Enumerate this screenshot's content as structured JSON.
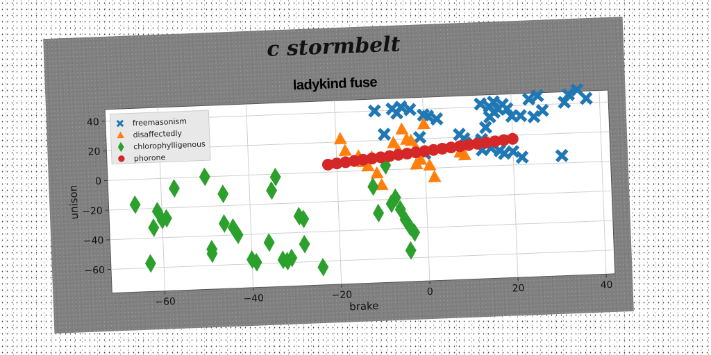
{
  "suptitle": "c stormbelt",
  "chart_data": {
    "type": "scatter",
    "title": "ladykind fuse",
    "xlabel": "brake",
    "ylabel": "unison",
    "xlim": [
      -72,
      42
    ],
    "ylim": [
      -76,
      48
    ],
    "xticks": [
      -60,
      -40,
      -20,
      0,
      20,
      40
    ],
    "yticks": [
      -60,
      -40,
      -20,
      0,
      20,
      40
    ],
    "grid": true,
    "legend_position": "top-left",
    "colors": {
      "freemasonism": "#1f77b4",
      "disaffectedly": "#ff7f0e",
      "chlorophylligenous": "#2ca02c",
      "phorone": "#d62728"
    },
    "series": [
      {
        "name": "freemasonism",
        "marker": "x",
        "points": [
          [
            -11,
            40
          ],
          [
            -7,
            41
          ],
          [
            -6,
            38
          ],
          [
            -5,
            42
          ],
          [
            -3,
            40
          ],
          [
            0,
            36
          ],
          [
            1,
            35
          ],
          [
            3,
            33
          ],
          [
            -9,
            24
          ],
          [
            -1,
            21
          ],
          [
            8,
            22
          ],
          [
            9,
            19
          ],
          [
            11,
            16
          ],
          [
            13,
            18
          ],
          [
            14,
            26
          ],
          [
            15,
            33
          ],
          [
            16,
            36
          ],
          [
            17,
            38
          ],
          [
            15,
            40
          ],
          [
            13,
            42
          ],
          [
            16,
            43
          ],
          [
            18,
            41
          ],
          [
            19,
            38
          ],
          [
            20,
            33
          ],
          [
            22,
            33
          ],
          [
            25,
            32
          ],
          [
            27,
            36
          ],
          [
            24,
            44
          ],
          [
            26,
            46
          ],
          [
            32,
            41
          ],
          [
            33,
            46
          ],
          [
            35,
            49
          ],
          [
            37,
            43
          ],
          [
            13,
            11
          ],
          [
            15,
            12
          ],
          [
            17,
            10
          ],
          [
            18,
            8
          ],
          [
            20,
            9
          ],
          [
            22,
            5
          ],
          [
            31,
            5
          ],
          [
            0,
            10
          ]
        ]
      },
      {
        "name": "disaffectedly",
        "marker": "^",
        "points": [
          [
            -19,
            22
          ],
          [
            -18,
            14
          ],
          [
            -15,
            10
          ],
          [
            -14,
            6
          ],
          [
            -13,
            3
          ],
          [
            -12,
            9
          ],
          [
            -11,
            -2
          ],
          [
            -10,
            -10
          ],
          [
            -7,
            18
          ],
          [
            -6,
            13
          ],
          [
            -5,
            27
          ],
          [
            -4,
            20
          ],
          [
            -3,
            19
          ],
          [
            -2,
            14
          ],
          [
            -2,
            3
          ],
          [
            -1,
            6
          ],
          [
            0,
            30
          ],
          [
            1,
            2
          ],
          [
            2,
            -6
          ],
          [
            8,
            10
          ],
          [
            9,
            8
          ]
        ]
      },
      {
        "name": "chlorophylligenous",
        "marker": "d",
        "points": [
          [
            -66,
            -17
          ],
          [
            -62,
            -33
          ],
          [
            -61,
            -22
          ],
          [
            -60,
            -28
          ],
          [
            -59,
            -27
          ],
          [
            -63,
            -57
          ],
          [
            -57,
            -7
          ],
          [
            -50,
            0
          ],
          [
            -49,
            -52
          ],
          [
            -49,
            -49
          ],
          [
            -46,
            -12
          ],
          [
            -46,
            -32
          ],
          [
            -44,
            -35
          ],
          [
            -43,
            -40
          ],
          [
            -40,
            -57
          ],
          [
            -39,
            -59
          ],
          [
            -36,
            -46
          ],
          [
            -35,
            -11
          ],
          [
            -34,
            -2
          ],
          [
            -33,
            -58
          ],
          [
            -32,
            -59
          ],
          [
            -31,
            -57
          ],
          [
            -29,
            -29
          ],
          [
            -28,
            -31
          ],
          [
            -28,
            -48
          ],
          [
            -24,
            -64
          ],
          [
            -12,
            -11
          ],
          [
            -11,
            -29
          ],
          [
            -8,
            -23
          ],
          [
            -7,
            -19
          ],
          [
            -6,
            -27
          ],
          [
            -5,
            -34
          ],
          [
            -4,
            -39
          ],
          [
            -4,
            -55
          ],
          [
            -3,
            -43
          ],
          [
            -9,
            3
          ]
        ]
      },
      {
        "name": "phorone",
        "marker": "o",
        "points": [
          [
            -22,
            5
          ],
          [
            -20,
            5.6
          ],
          [
            -18,
            6.2
          ],
          [
            -16,
            6.8
          ],
          [
            -14,
            7.4
          ],
          [
            -12,
            8.0
          ],
          [
            -10,
            8.6
          ],
          [
            -8,
            9.2
          ],
          [
            -6,
            9.8
          ],
          [
            -4,
            10.4
          ],
          [
            -2,
            11.0
          ],
          [
            0,
            11.6
          ],
          [
            2,
            12.2
          ],
          [
            4,
            12.8
          ],
          [
            6,
            13.4
          ],
          [
            8,
            14.0
          ],
          [
            10,
            14.6
          ],
          [
            12,
            15.2
          ],
          [
            14,
            15.8
          ],
          [
            16,
            16.4
          ],
          [
            18,
            17.0
          ],
          [
            20,
            17.6
          ]
        ]
      }
    ]
  }
}
